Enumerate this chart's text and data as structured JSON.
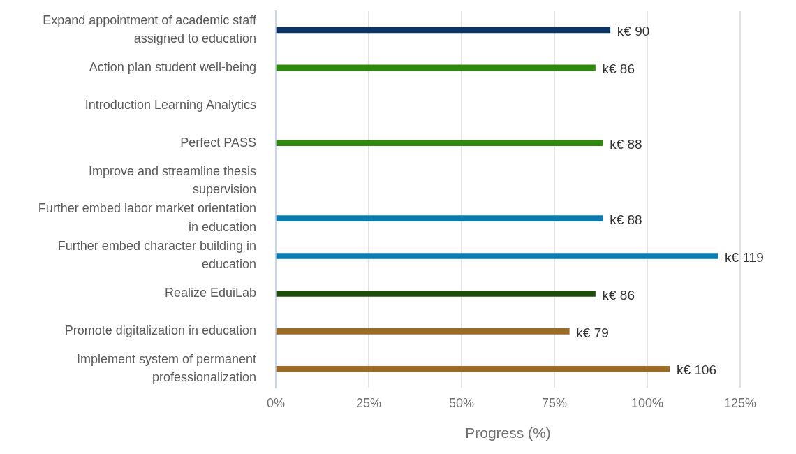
{
  "chart_data": {
    "type": "bar",
    "orientation": "horizontal",
    "xlabel": "Progress (%)",
    "categories": [
      "Expand appointment of academic staff assigned to education",
      "Action plan student well-being",
      "Introduction Learning Analytics",
      "Perfect PASS",
      "Improve and streamline thesis supervision",
      "Further embed labor market orientation in education",
      "Further embed character building in education",
      "Realize EduiLab",
      "Promote digitalization in education",
      "Implement system of permanent professionalization"
    ],
    "values": [
      90,
      86,
      null,
      88,
      null,
      88,
      119,
      86,
      79,
      106
    ],
    "colors": [
      "#0b3566",
      "#2e8a0b",
      null,
      "#2e8a0b",
      null,
      "#0a7cb0",
      "#0a7cb0",
      "#1e4d09",
      "#9b6b26",
      "#9b6b26"
    ],
    "value_labels": [
      "k€ 90",
      "k€ 86",
      null,
      "k€ 88",
      null,
      "k€ 88",
      "k€ 119",
      "k€ 86",
      "k€ 79",
      "k€ 106"
    ],
    "xlim": [
      0,
      125
    ],
    "xticks": [
      {
        "value": 0,
        "label": "0%"
      },
      {
        "value": 25,
        "label": "25%"
      },
      {
        "value": 50,
        "label": "50%"
      },
      {
        "value": 75,
        "label": "75%"
      },
      {
        "value": 100,
        "label": "100%"
      },
      {
        "value": 125,
        "label": "125%"
      }
    ],
    "grid": "x"
  }
}
